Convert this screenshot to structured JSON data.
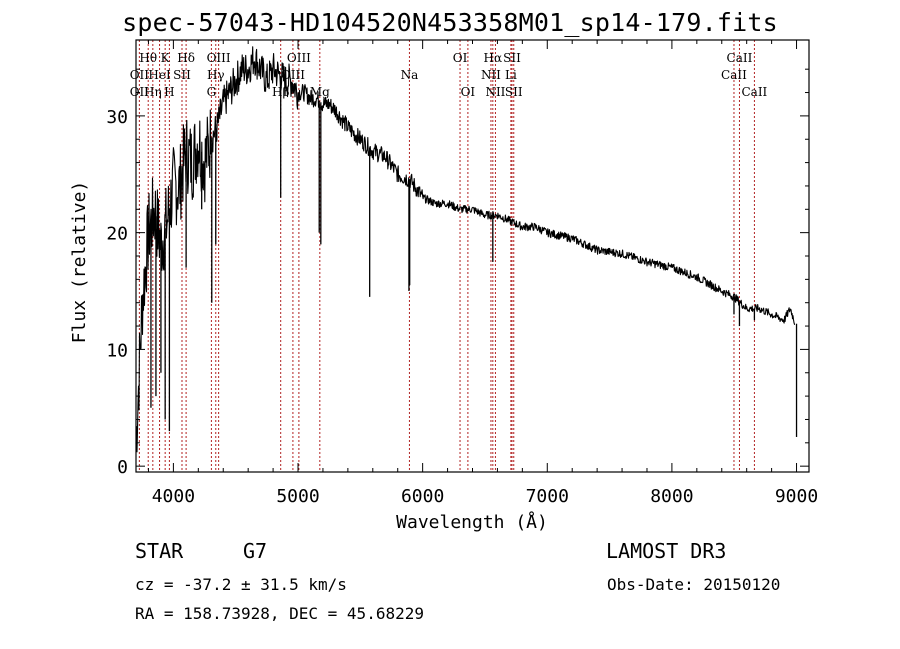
{
  "chart_data": {
    "type": "line",
    "title": "spec-57043-HD104520N453358M01_sp14-179.fits",
    "xlabel": "Wavelength (Å)",
    "ylabel": "Flux (relative)",
    "xlim": [
      3700,
      9100
    ],
    "ylim": [
      -0.5,
      36.5
    ],
    "x_ticks": [
      4000,
      5000,
      6000,
      7000,
      8000,
      9000
    ],
    "y_ticks": [
      0,
      10,
      20,
      30
    ],
    "series": [
      {
        "name": "flux",
        "x": [
          3700,
          3750,
          3800,
          3850,
          3900,
          3950,
          4000,
          4050,
          4100,
          4150,
          4200,
          4250,
          4300,
          4350,
          4400,
          4450,
          4500,
          4550,
          4600,
          4650,
          4700,
          4750,
          4800,
          4850,
          4900,
          4950,
          5000,
          5050,
          5100,
          5150,
          5200,
          5250,
          5300,
          5400,
          5500,
          5600,
          5700,
          5800,
          5900,
          6000,
          6100,
          6200,
          6300,
          6400,
          6500,
          6600,
          6700,
          6800,
          6900,
          7000,
          7200,
          7400,
          7600,
          7800,
          8000,
          8200,
          8400,
          8500,
          8600,
          8700,
          8800,
          8900,
          8950,
          8990
        ],
        "y": [
          2,
          14,
          20,
          22,
          19,
          21,
          24,
          24,
          27,
          26,
          28,
          26,
          28,
          29,
          31,
          32,
          33,
          34,
          34,
          35,
          34,
          33,
          34,
          33.5,
          33,
          33,
          32,
          32,
          31.5,
          31.5,
          31,
          31,
          30.5,
          29,
          28,
          27,
          26.5,
          25,
          24.5,
          23,
          22.5,
          22.5,
          22,
          22,
          21.5,
          21.5,
          21,
          20.5,
          20.5,
          20,
          19.5,
          18.5,
          18.2,
          17.5,
          17,
          16.2,
          15,
          14.5,
          13.5,
          13.5,
          13,
          12.5,
          13.5,
          12.2
        ]
      }
    ],
    "absorption_dips": [
      {
        "x": 3820,
        "y": 5
      },
      {
        "x": 3860,
        "y": 6
      },
      {
        "x": 3900,
        "y": 8
      },
      {
        "x": 3934,
        "y": 4
      },
      {
        "x": 3968,
        "y": 3
      },
      {
        "x": 4102,
        "y": 17
      },
      {
        "x": 4227,
        "y": 22
      },
      {
        "x": 4308,
        "y": 14
      },
      {
        "x": 4340,
        "y": 19
      },
      {
        "x": 4861,
        "y": 23
      },
      {
        "x": 5170,
        "y": 20
      },
      {
        "x": 5183,
        "y": 19
      },
      {
        "x": 5575,
        "y": 14.5
      },
      {
        "x": 5890,
        "y": 15
      },
      {
        "x": 5896,
        "y": 15.5
      },
      {
        "x": 6563,
        "y": 17.5
      },
      {
        "x": 8498,
        "y": 13
      },
      {
        "x": 8542,
        "y": 12
      },
      {
        "x": 8662,
        "y": 12.5
      },
      {
        "x": 9000,
        "y": 2.5
      }
    ],
    "line_markers": [
      {
        "label": "Hθ",
        "x": 3798,
        "row": 1
      },
      {
        "label": "OII",
        "x": 3727,
        "row": 2
      },
      {
        "label": "OII",
        "x": 3727,
        "row": 3
      },
      {
        "label": "Hη",
        "x": 3835,
        "row": 3
      },
      {
        "label": "HeI",
        "x": 3889,
        "row": 2
      },
      {
        "label": "K",
        "x": 3934,
        "row": 1
      },
      {
        "label": "SII",
        "x": 4069,
        "row": 2
      },
      {
        "label": "H",
        "x": 3968,
        "row": 3
      },
      {
        "label": "Hδ",
        "x": 4102,
        "row": 1
      },
      {
        "label": "OIII",
        "x": 4363,
        "row": 1
      },
      {
        "label": "Hγ",
        "x": 4340,
        "row": 2
      },
      {
        "label": "G",
        "x": 4305,
        "row": 3
      },
      {
        "label": "Hβ",
        "x": 4861,
        "row": 3
      },
      {
        "label": "OIII",
        "x": 5007,
        "row": 1
      },
      {
        "label": "OIII",
        "x": 4959,
        "row": 2
      },
      {
        "label": "Mg",
        "x": 5175,
        "row": 3
      },
      {
        "label": "Na",
        "x": 5894,
        "row": 2
      },
      {
        "label": "OI",
        "x": 6300,
        "row": 1
      },
      {
        "label": "OI",
        "x": 6363,
        "row": 3
      },
      {
        "label": "Hα",
        "x": 6563,
        "row": 1
      },
      {
        "label": "NII",
        "x": 6548,
        "row": 2
      },
      {
        "label": "NII",
        "x": 6584,
        "row": 3
      },
      {
        "label": "SII",
        "x": 6717,
        "row": 1
      },
      {
        "label": "Li",
        "x": 6708,
        "row": 2
      },
      {
        "label": "SII",
        "x": 6731,
        "row": 3
      },
      {
        "label": "CaII",
        "x": 8542,
        "row": 1
      },
      {
        "label": "CaII",
        "x": 8498,
        "row": 2
      },
      {
        "label": "CaII",
        "x": 8662,
        "row": 3
      }
    ],
    "marker_lines_x": [
      3727,
      3798,
      3835,
      3889,
      3934,
      3968,
      4069,
      4102,
      4305,
      4340,
      4363,
      4861,
      4959,
      5007,
      5175,
      5894,
      6300,
      6363,
      6548,
      6563,
      6584,
      6708,
      6717,
      6731,
      8498,
      8542,
      8662
    ]
  },
  "info": {
    "object_class": "STAR",
    "subclass": "G7",
    "survey": "LAMOST DR3",
    "cz": "cz = -37.2 ± 31.5 km/s",
    "obs_date": "Obs-Date: 20150120",
    "coords": "RA = 158.73928, DEC =  45.68229"
  },
  "colors": {
    "spectrum": "#000000",
    "marker_line": "#b22222",
    "axis": "#000000"
  }
}
